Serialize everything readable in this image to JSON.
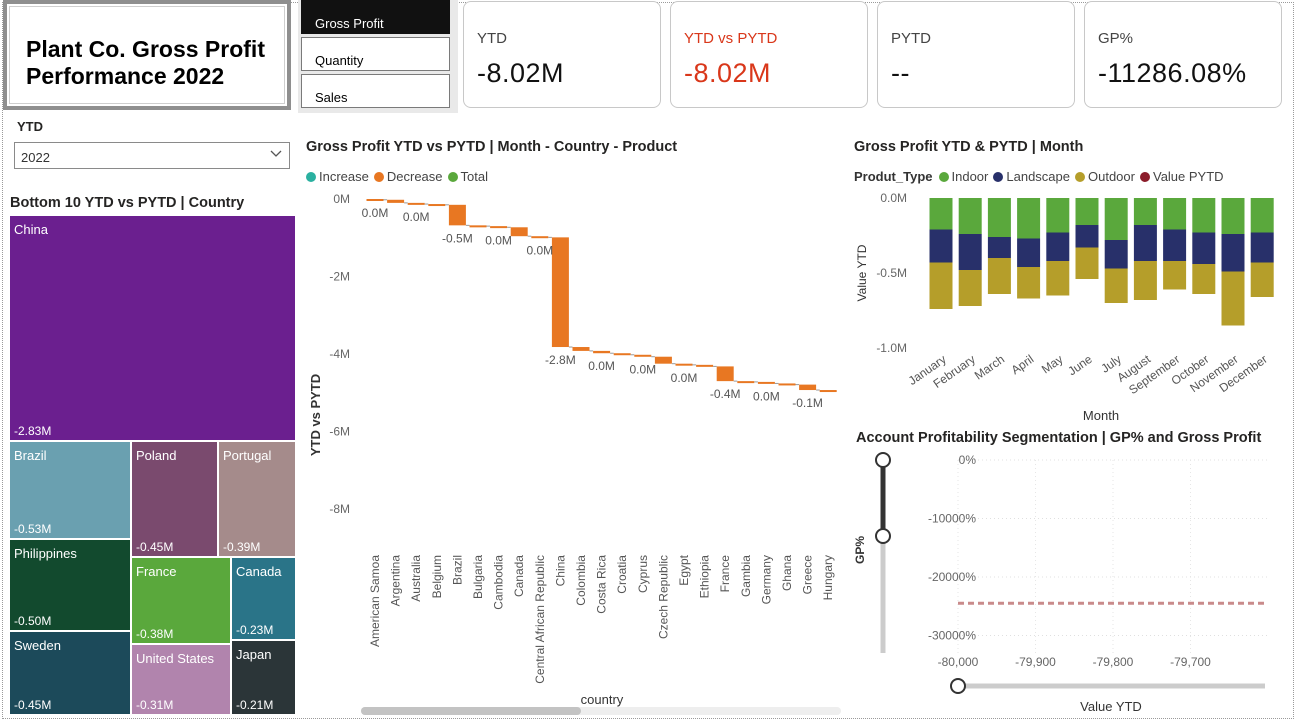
{
  "title": "Plant Co. Gross Profit Performance 2022",
  "measures": [
    {
      "label": "Gross Profit",
      "active": true
    },
    {
      "label": "Quantity",
      "active": false
    },
    {
      "label": "Sales",
      "active": false
    }
  ],
  "kpis": [
    {
      "label": "YTD",
      "value": "-8.02M",
      "color": "#111111"
    },
    {
      "label": "YTD vs PYTD",
      "value": "-8.02M",
      "color": "#d9371a"
    },
    {
      "label": "PYTD",
      "value": "--",
      "color": "#111111"
    },
    {
      "label": "GP%",
      "value": "-11286.08%",
      "color": "#111111"
    }
  ],
  "slicer": {
    "label": "YTD",
    "value": "2022"
  },
  "treemap": {
    "title": "Bottom 10 YTD vs PYTD | Country",
    "items": [
      {
        "name": "China",
        "value": "-2.83M",
        "color": "#6b1f8f"
      },
      {
        "name": "Brazil",
        "value": "-0.53M",
        "color": "#6aa0b0"
      },
      {
        "name": "Poland",
        "value": "-0.45M",
        "color": "#7a4a6e"
      },
      {
        "name": "Portugal",
        "value": "-0.39M",
        "color": "#a58b8b"
      },
      {
        "name": "Philippines",
        "value": "-0.50M",
        "color": "#124a2e"
      },
      {
        "name": "France",
        "value": "-0.38M",
        "color": "#5aa83c"
      },
      {
        "name": "Canada",
        "value": "-0.23M",
        "color": "#2a7488"
      },
      {
        "name": "Sweden",
        "value": "-0.45M",
        "color": "#1c4a5a"
      },
      {
        "name": "United States",
        "value": "-0.31M",
        "color": "#b184ad"
      },
      {
        "name": "Japan",
        "value": "-0.21M",
        "color": "#2b3538"
      }
    ]
  },
  "waterfall": {
    "title": "Gross Profit YTD vs PYTD | Month - Country - Product",
    "legend": [
      {
        "label": "Increase",
        "color": "#2ab0a0"
      },
      {
        "label": "Decrease",
        "color": "#e87722"
      },
      {
        "label": "Total",
        "color": "#5aa83c"
      }
    ],
    "ylabel": "YTD vs PYTD",
    "xlabel": "country",
    "yticks": [
      "0M",
      "-2M",
      "-4M",
      "-6M",
      "-8M"
    ],
    "color_decrease": "#e87722"
  },
  "chart_data": [
    {
      "type": "bar",
      "title": "Gross Profit YTD vs PYTD | Month - Country - Product",
      "subtype": "waterfall",
      "categories": [
        "American Samoa",
        "Argentina",
        "Australia",
        "Belgium",
        "Brazil",
        "Bulgaria",
        "Cambodia",
        "Canada",
        "Central African Republic",
        "China",
        "Colombia",
        "Costa Rica",
        "Croatia",
        "Cyprus",
        "Czech Republic",
        "Egypt",
        "Ethiopia",
        "France",
        "Gambia",
        "Germany",
        "Ghana",
        "Greece",
        "Hungary"
      ],
      "values": [
        -0.02,
        -0.08,
        -0.03,
        -0.02,
        -0.53,
        -0.02,
        -0.03,
        -0.23,
        -0.03,
        -2.83,
        -0.1,
        -0.06,
        -0.04,
        -0.05,
        -0.18,
        -0.03,
        -0.04,
        -0.38,
        -0.02,
        -0.04,
        -0.03,
        -0.14,
        -0.05
      ],
      "labels": {
        "0": "0.0M",
        "2": "0.0M",
        "4": "-0.5M",
        "6": "0.0M",
        "8": "0.0M",
        "9": "-2.8M",
        "11": "0.0M",
        "13": "0.0M",
        "15": "0.0M",
        "17": "-0.4M",
        "19": "0.0M",
        "21": "-0.1M"
      },
      "xlabel": "country",
      "ylabel": "YTD vs PYTD",
      "ylim": [
        -8,
        0
      ],
      "yticks": [
        "0M",
        "-2M",
        "-4M",
        "-6M",
        "-8M"
      ]
    },
    {
      "type": "bar",
      "subtype": "stacked",
      "title": "Gross Profit YTD & PYTD | Month",
      "categories": [
        "January",
        "February",
        "March",
        "April",
        "May",
        "June",
        "July",
        "August",
        "September",
        "October",
        "November",
        "December"
      ],
      "series": [
        {
          "name": "Indoor",
          "color": "#5aa83c",
          "values": [
            -0.21,
            -0.24,
            -0.26,
            -0.27,
            -0.23,
            -0.18,
            -0.28,
            -0.18,
            -0.21,
            -0.23,
            -0.24,
            -0.23
          ]
        },
        {
          "name": "Landscape",
          "color": "#28306a",
          "values": [
            -0.22,
            -0.24,
            -0.14,
            -0.19,
            -0.19,
            -0.15,
            -0.19,
            -0.24,
            -0.21,
            -0.21,
            -0.25,
            -0.2
          ]
        },
        {
          "name": "Outdoor",
          "color": "#b59e2a",
          "values": [
            -0.31,
            -0.24,
            -0.24,
            -0.21,
            -0.23,
            -0.21,
            -0.23,
            -0.26,
            -0.19,
            -0.2,
            -0.36,
            -0.23
          ]
        },
        {
          "name": "Value PYTD",
          "color": "#8b1c2a",
          "values": [
            0,
            0,
            0,
            0,
            0,
            0,
            0,
            0,
            0,
            0,
            0,
            0
          ]
        }
      ],
      "legend_title": "Produt_Type",
      "xlabel": "Month",
      "ylabel": "Value YTD",
      "ylim": [
        -1.0,
        0
      ],
      "yticks": [
        "0.0M",
        "-0.5M",
        "-1.0M"
      ]
    },
    {
      "type": "scatter",
      "title": "Account Profitability Segmentation | GP% and Gross Profit",
      "xlabel": "Value YTD",
      "ylabel": "GP%",
      "xticks": [
        "-80,000",
        "-79,900",
        "-79,800",
        "-79,700"
      ],
      "yticks": [
        "0%",
        "-10000%",
        "-20000%",
        "-30000%"
      ],
      "reference_line_y": -24500,
      "ylim": [
        -33000,
        0
      ],
      "xlim": [
        -80000,
        -79600
      ]
    }
  ],
  "stacked": {
    "title": "Gross Profit YTD & PYTD | Month",
    "legend_title": "Produt_Type",
    "legend": [
      {
        "label": "Indoor",
        "color": "#5aa83c"
      },
      {
        "label": "Landscape",
        "color": "#28306a"
      },
      {
        "label": "Outdoor",
        "color": "#b59e2a"
      },
      {
        "label": "Value PYTD",
        "color": "#8b1c2a"
      }
    ]
  },
  "scatter": {
    "title": "Account Profitability Segmentation | GP% and Gross Profit",
    "line_color": "#c98a8a"
  }
}
